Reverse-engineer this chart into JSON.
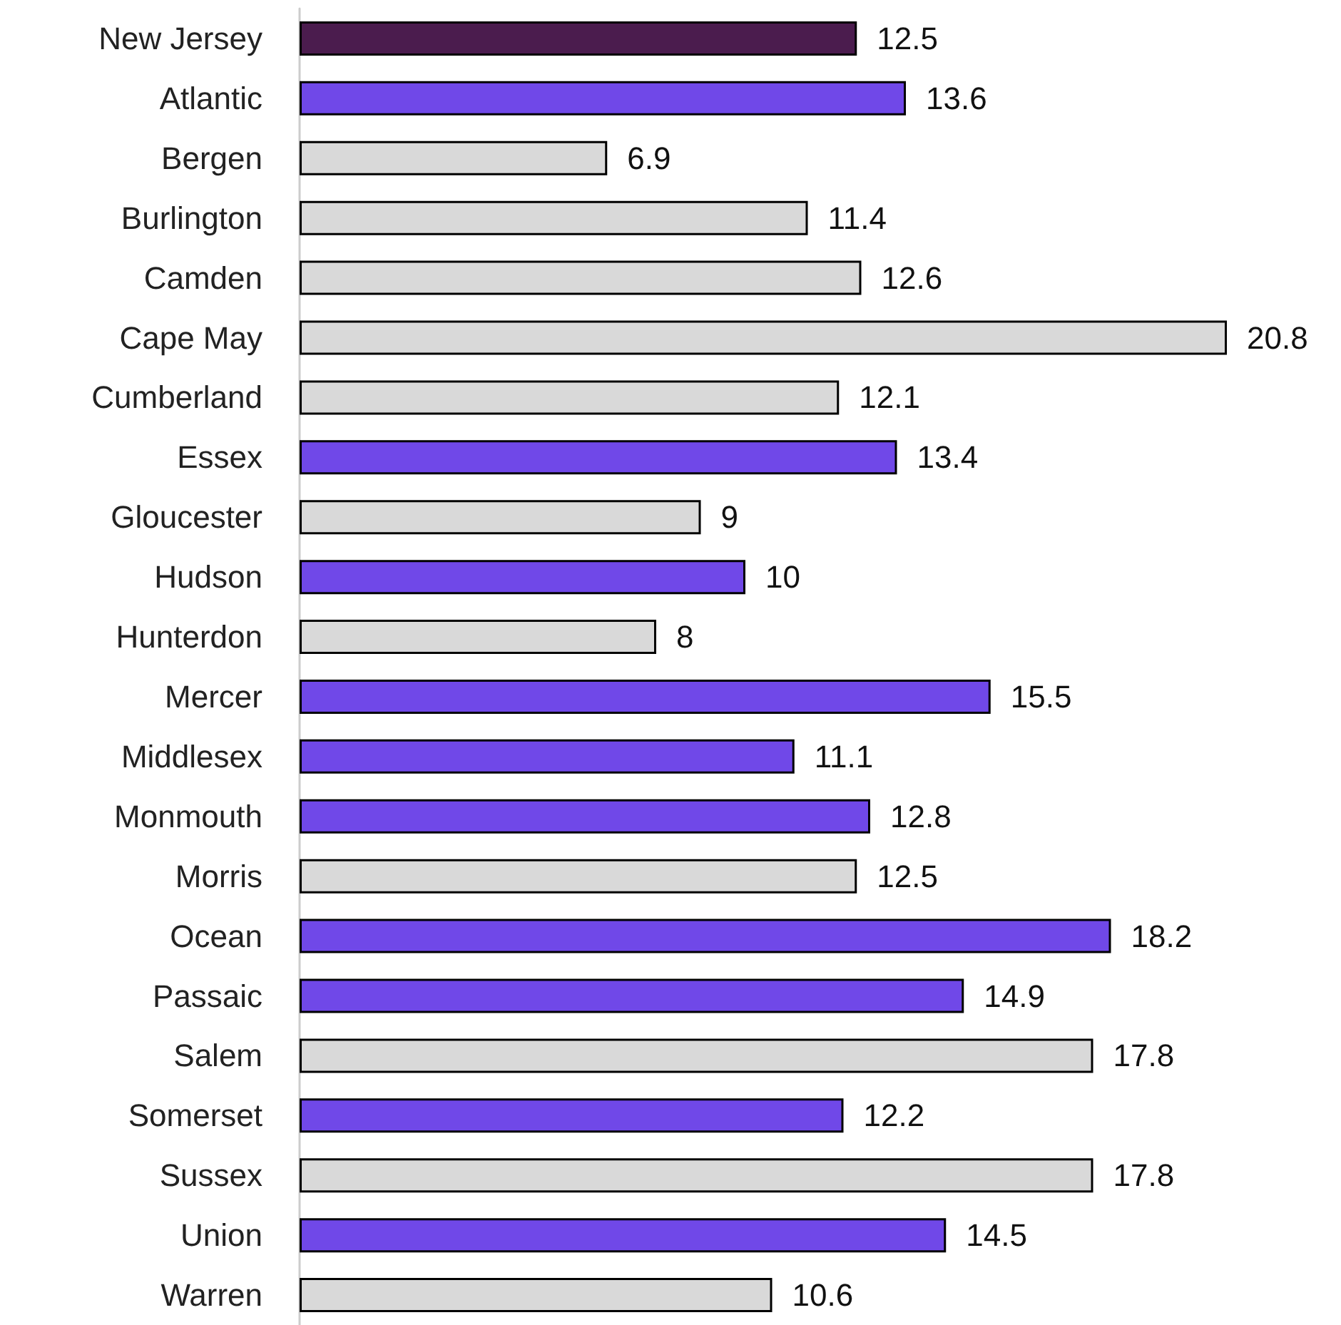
{
  "chart_data": {
    "type": "bar",
    "orientation": "horizontal",
    "data_labels": true,
    "categories": [
      "New Jersey",
      "Atlantic",
      "Bergen",
      "Burlington",
      "Camden",
      "Cape May",
      "Cumberland",
      "Essex",
      "Gloucester",
      "Hudson",
      "Hunterdon",
      "Mercer",
      "Middlesex",
      "Monmouth",
      "Morris",
      "Ocean",
      "Passaic",
      "Salem",
      "Somerset",
      "Sussex",
      "Union",
      "Warren"
    ],
    "values": [
      12.5,
      13.6,
      6.9,
      11.4,
      12.6,
      20.8,
      12.1,
      13.4,
      9,
      10,
      8,
      15.5,
      11.1,
      12.8,
      12.5,
      18.2,
      14.9,
      17.8,
      12.2,
      17.8,
      14.5,
      10.6
    ],
    "colors": [
      "#4b1c4e",
      "#7048e8",
      "#d9d9d9",
      "#d9d9d9",
      "#d9d9d9",
      "#d9d9d9",
      "#d9d9d9",
      "#7048e8",
      "#d9d9d9",
      "#7048e8",
      "#d9d9d9",
      "#7048e8",
      "#7048e8",
      "#7048e8",
      "#d9d9d9",
      "#7048e8",
      "#7048e8",
      "#d9d9d9",
      "#7048e8",
      "#d9d9d9",
      "#7048e8",
      "#d9d9d9"
    ]
  }
}
